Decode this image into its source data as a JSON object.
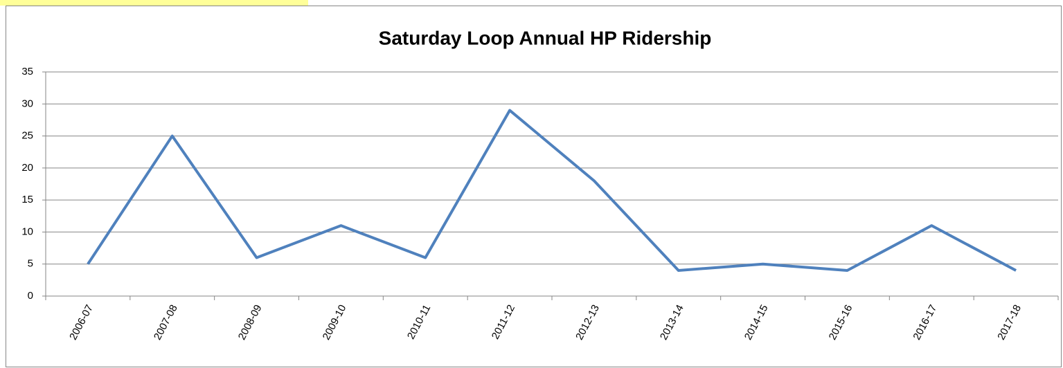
{
  "chart_data": {
    "type": "line",
    "title": "Saturday Loop Annual HP Ridership",
    "categories": [
      "2006-07",
      "2007-08",
      "2008-09",
      "2009-10",
      "2010-11",
      "2011-12",
      "2012-13",
      "2013-14",
      "2014-15",
      "2015-16",
      "2016-17",
      "2017-18"
    ],
    "series": [
      {
        "name": "Saturday Loop Annual HP Ridership",
        "color": "#4f81bd",
        "values": [
          5,
          25,
          6,
          11,
          6,
          29,
          18,
          4,
          5,
          4,
          11,
          4
        ]
      }
    ],
    "ylim": [
      0,
      35
    ],
    "yticks": [
      0,
      5,
      10,
      15,
      20,
      25,
      30,
      35
    ],
    "grid": true
  }
}
